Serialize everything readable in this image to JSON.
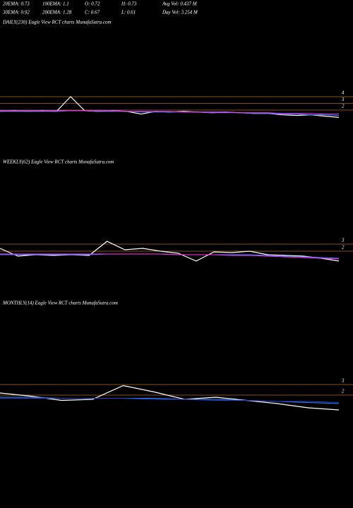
{
  "header": {
    "rows": [
      [
        "20EMA: 0.73",
        "100EMA: 1.1",
        "O: 0.72",
        "H: 0.73",
        "Avg Vol: 0.437 M"
      ],
      [
        "30EMA: 0.92",
        "200EMA: 1.28",
        "C: 0.67",
        "L: 0.61",
        "Day Vol: 3.254 M"
      ]
    ]
  },
  "chart_data": [
    {
      "type": "line",
      "title": "DAILY(230) Eagle  View  RCT charts MunafaSutra.com",
      "categories": [
        null,
        null,
        null,
        null,
        null,
        null,
        null,
        null,
        null,
        null,
        null,
        null,
        null,
        null,
        null,
        null,
        null,
        null,
        null,
        null,
        null,
        null,
        null,
        null,
        null
      ],
      "series": [
        {
          "name": "price",
          "color": "#ffffff",
          "values": [
            1.8,
            1.9,
            1.8,
            1.9,
            1.8,
            4.0,
            1.9,
            1.8,
            1.9,
            1.8,
            1.4,
            1.8,
            1.7,
            1.8,
            1.7,
            1.6,
            1.7,
            1.6,
            1.5,
            1.5,
            1.3,
            1.2,
            1.3,
            1.1,
            0.9
          ]
        },
        {
          "name": "ema-short",
          "color": "#3b7bff",
          "values": [
            1.8,
            1.8,
            1.8,
            1.8,
            1.8,
            1.9,
            1.9,
            1.8,
            1.8,
            1.8,
            1.7,
            1.7,
            1.7,
            1.7,
            1.7,
            1.6,
            1.6,
            1.6,
            1.5,
            1.5,
            1.4,
            1.4,
            1.3,
            1.3,
            1.2
          ]
        },
        {
          "name": "ema-long",
          "color": "#ff33ff",
          "values": [
            1.9,
            1.9,
            1.9,
            1.9,
            1.9,
            1.9,
            1.9,
            1.9,
            1.9,
            1.8,
            1.8,
            1.8,
            1.8,
            1.7,
            1.7,
            1.7,
            1.7,
            1.6,
            1.6,
            1.6,
            1.5,
            1.5,
            1.5,
            1.4,
            1.4
          ]
        }
      ],
      "ylim": [
        0,
        14
      ],
      "yticks": [
        2,
        3,
        4
      ],
      "grid": true
    },
    {
      "type": "line",
      "title": "WEEKLY(62) Eagle  View  RCT charts MunafaSutra.com",
      "categories": [
        null,
        null,
        null,
        null,
        null,
        null,
        null,
        null,
        null,
        null,
        null,
        null,
        null,
        null,
        null,
        null,
        null,
        null,
        null,
        null
      ],
      "series": [
        {
          "name": "price",
          "color": "#ffffff",
          "values": [
            2.4,
            1.3,
            1.5,
            1.4,
            1.5,
            1.4,
            3.4,
            2.2,
            2.4,
            2.0,
            1.7,
            0.6,
            1.9,
            1.8,
            2.0,
            1.5,
            1.4,
            1.3,
            1.0,
            0.6
          ]
        },
        {
          "name": "ema-short",
          "color": "#3b7bff",
          "values": [
            1.5,
            1.5,
            1.5,
            1.5,
            1.5,
            1.5,
            1.6,
            1.6,
            1.6,
            1.6,
            1.5,
            1.5,
            1.5,
            1.5,
            1.5,
            1.4,
            1.3,
            1.2,
            1.1,
            1.0
          ]
        },
        {
          "name": "ema-long",
          "color": "#ff33ff",
          "values": [
            1.6,
            1.6,
            1.6,
            1.6,
            1.6,
            1.6,
            1.6,
            1.6,
            1.6,
            1.6,
            1.5,
            1.5,
            1.5,
            1.4,
            1.4,
            1.3,
            1.2,
            1.1,
            1.0,
            0.9
          ]
        }
      ],
      "ylim": [
        0,
        13
      ],
      "yticks": [
        2,
        3
      ],
      "grid": true
    },
    {
      "type": "line",
      "title": "MONTHLY(14) Eagle  View  RCT charts MunafaSutra.com",
      "categories": [
        null,
        null,
        null,
        null,
        null,
        null,
        null,
        null,
        null,
        null,
        null,
        null
      ],
      "series": [
        {
          "name": "price",
          "color": "#ffffff",
          "values": [
            2.2,
            1.9,
            1.5,
            1.6,
            2.9,
            2.3,
            1.6,
            1.8,
            1.5,
            1.2,
            0.8,
            0.6
          ]
        },
        {
          "name": "ema-short",
          "color": "#3b7bff",
          "values": [
            1.8,
            1.8,
            1.7,
            1.7,
            1.7,
            1.7,
            1.6,
            1.6,
            1.5,
            1.4,
            1.3,
            1.2
          ]
        },
        {
          "name": "ema-long",
          "color": "#1f3fbf",
          "values": [
            1.7,
            1.7,
            1.7,
            1.7,
            1.7,
            1.6,
            1.6,
            1.5,
            1.5,
            1.4,
            1.4,
            1.3
          ]
        }
      ],
      "ylim": [
        0,
        9
      ],
      "yticks": [
        2,
        3
      ],
      "grid": true
    }
  ]
}
